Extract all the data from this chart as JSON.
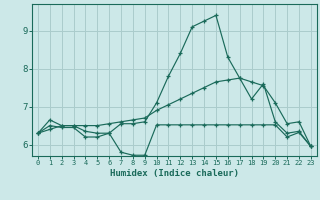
{
  "xlabel": "Humidex (Indice chaleur)",
  "background_color": "#cce8e8",
  "grid_color": "#aacccc",
  "line_color": "#1a6a5a",
  "xlim_min": -0.5,
  "xlim_max": 23.5,
  "ylim_min": 5.7,
  "ylim_max": 9.7,
  "xticks": [
    0,
    1,
    2,
    3,
    4,
    5,
    6,
    7,
    8,
    9,
    10,
    11,
    12,
    13,
    14,
    15,
    16,
    17,
    18,
    19,
    20,
    21,
    22,
    23
  ],
  "yticks": [
    6,
    7,
    8,
    9
  ],
  "series1_x": [
    0,
    1,
    2,
    3,
    4,
    5,
    6,
    7,
    8,
    9,
    10,
    11,
    12,
    13,
    14,
    15,
    16,
    17,
    18,
    19,
    20,
    21,
    22,
    23
  ],
  "series1_y": [
    6.3,
    6.65,
    6.5,
    6.5,
    6.35,
    6.3,
    6.3,
    6.55,
    6.55,
    6.6,
    7.1,
    7.8,
    8.4,
    9.1,
    9.25,
    9.4,
    8.3,
    7.75,
    7.2,
    7.6,
    6.6,
    6.3,
    6.35,
    5.95
  ],
  "series2_x": [
    0,
    1,
    2,
    3,
    4,
    5,
    6,
    7,
    8,
    9,
    10,
    11,
    12,
    13,
    14,
    15,
    16,
    17,
    18,
    19,
    20,
    21,
    22,
    23
  ],
  "series2_y": [
    6.3,
    6.5,
    6.45,
    6.45,
    6.2,
    6.2,
    6.3,
    5.8,
    5.72,
    5.72,
    6.52,
    6.52,
    6.52,
    6.52,
    6.52,
    6.52,
    6.52,
    6.52,
    6.52,
    6.52,
    6.52,
    6.2,
    6.32,
    5.95
  ],
  "series3_x": [
    0,
    1,
    2,
    3,
    4,
    5,
    6,
    7,
    8,
    9,
    10,
    11,
    12,
    13,
    14,
    15,
    16,
    17,
    18,
    19,
    20,
    21,
    22,
    23
  ],
  "series3_y": [
    6.3,
    6.4,
    6.5,
    6.5,
    6.5,
    6.5,
    6.55,
    6.6,
    6.65,
    6.7,
    6.9,
    7.05,
    7.2,
    7.35,
    7.5,
    7.65,
    7.7,
    7.75,
    7.65,
    7.55,
    7.1,
    6.55,
    6.6,
    5.95
  ]
}
